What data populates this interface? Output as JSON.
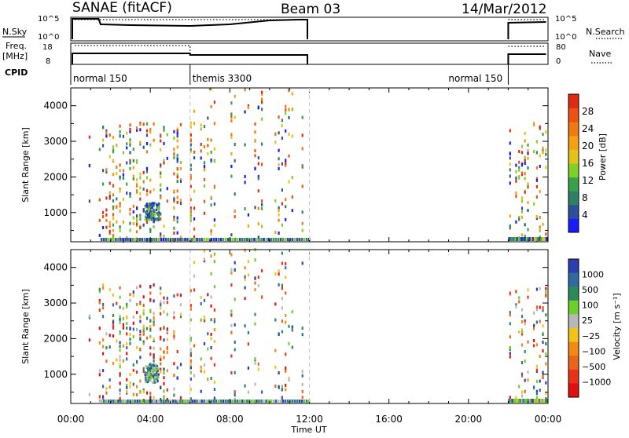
{
  "header": {
    "title": "SANAE (fitACF)",
    "beam": "Beam 03",
    "date": "14/Mar/2012"
  },
  "strip_labels": {
    "nsky": "N.Sky",
    "nsearch": "N.Search",
    "freq": "Freq.",
    "mhz": "[MHz]",
    "nave": "Nave",
    "cpid": "CPID",
    "nsky_ticks": [
      "10^5",
      "10^0"
    ],
    "nsearch_ticks": [
      "10^5",
      "10^0"
    ],
    "freq_ticks": [
      "18",
      "8"
    ],
    "nave_ticks": [
      "80",
      "0"
    ]
  },
  "cpid_segments": [
    {
      "label": "normal 150",
      "start_hour": 0,
      "end_hour": 6
    },
    {
      "label": "themis 3300",
      "start_hour": 6,
      "end_hour": 12
    },
    {
      "label": "normal 150",
      "start_hour": 22,
      "end_hour": 24
    }
  ],
  "colors": {
    "power_scale": [
      "#1a1aff",
      "#2d4f9a",
      "#2f7f64",
      "#3aa14a",
      "#80d02a",
      "#e3c21a",
      "#f5a011",
      "#f07a12",
      "#ee5212",
      "#e02a12"
    ],
    "velocity_scale": [
      "#2b3fae",
      "#2f6aa0",
      "#2a8a5a",
      "#6ccf2c",
      "#b8b8b8",
      "#f2c21a",
      "#f08a12",
      "#e8661a",
      "#e8331a",
      "#e01010"
    ],
    "dashed_line": "#c8c8c8"
  },
  "chart_data": [
    {
      "type": "heatmap",
      "title": "",
      "xlabel": "",
      "ylabel": "Slant Range [km]",
      "xlim": [
        0,
        24
      ],
      "ylim": [
        180,
        4500
      ],
      "y_ticks": [
        "1000",
        "2000",
        "3000",
        "4000"
      ],
      "colorbar_label": "Power [dB]",
      "colorbar_ticks": [
        "4",
        "8",
        "12",
        "16",
        "20",
        "24",
        "28"
      ],
      "observation_gaps_hours": [
        [
          12,
          22
        ]
      ],
      "mode_boundaries_hours": [
        6,
        12
      ]
    },
    {
      "type": "heatmap",
      "title": "",
      "xlabel": "Time UT",
      "ylabel": "Slant Range [km]",
      "xlim": [
        0,
        24
      ],
      "ylim": [
        180,
        4500
      ],
      "x_ticks": [
        "00:00",
        "04:00",
        "08:00",
        "12:00",
        "16:00",
        "20:00",
        "00:00"
      ],
      "y_ticks": [
        "1000",
        "2000",
        "3000",
        "4000"
      ],
      "colorbar_label": "Velocity [m s⁻¹]",
      "colorbar_ticks": [
        "1000",
        "500",
        "100",
        "25",
        "−25",
        "−100",
        "−500",
        "−1000"
      ],
      "observation_gaps_hours": [
        [
          12,
          22
        ]
      ],
      "mode_boundaries_hours": [
        6,
        12
      ]
    }
  ]
}
